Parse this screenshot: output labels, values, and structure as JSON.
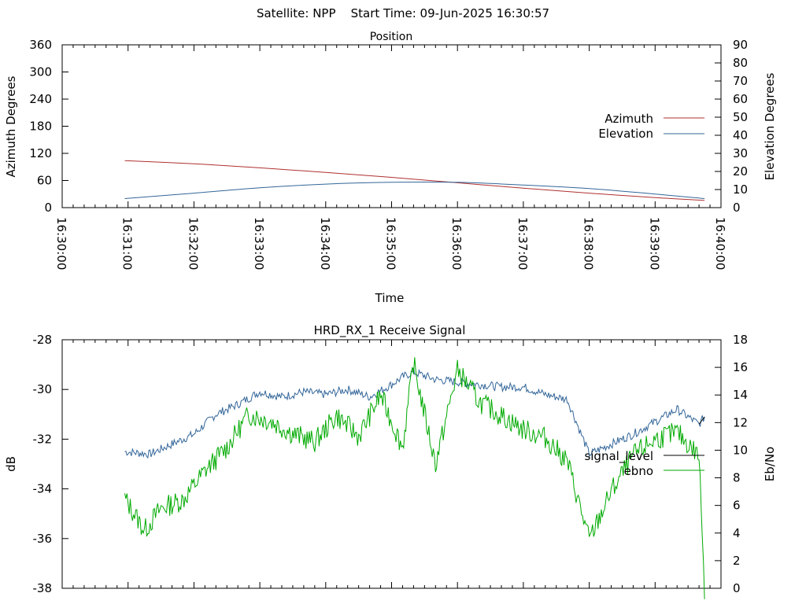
{
  "figure": {
    "header": "Satellite: NPP    Start Time: 09-Jun-2025 16:30:57"
  },
  "chart_data": [
    {
      "type": "line",
      "title": "Position",
      "xlabel": "Time",
      "ylabel_left": "Azimuth Degrees",
      "ylabel_right": "Elevation Degrees",
      "xlim": [
        "16:30:00",
        "16:40:00"
      ],
      "ylim_left": [
        0,
        360
      ],
      "ylim_right": [
        0,
        90
      ],
      "x_ticks": [
        "16:30:00",
        "16:31:00",
        "16:32:00",
        "16:33:00",
        "16:34:00",
        "16:35:00",
        "16:36:00",
        "16:37:00",
        "16:38:00",
        "16:39:00",
        "16:40:00"
      ],
      "y_ticks_left": [
        0,
        60,
        120,
        180,
        240,
        300,
        360
      ],
      "y_ticks_right": [
        0,
        10,
        20,
        30,
        40,
        50,
        60,
        70,
        80,
        90
      ],
      "legend_position": "right",
      "colors": {
        "azimuth": "#b03030",
        "elevation": "#336699"
      },
      "series": [
        {
          "name": "Azimuth",
          "axis": "left",
          "x": [
            "16:30:57",
            "16:32:00",
            "16:33:00",
            "16:34:00",
            "16:35:00",
            "16:36:00",
            "16:37:00",
            "16:38:00",
            "16:39:00",
            "16:39:45"
          ],
          "values": [
            104,
            97,
            88,
            78,
            67,
            55,
            43,
            32,
            22,
            16
          ]
        },
        {
          "name": "Elevation",
          "axis": "right",
          "x": [
            "16:30:57",
            "16:32:00",
            "16:33:00",
            "16:34:00",
            "16:35:00",
            "16:36:00",
            "16:37:00",
            "16:38:00",
            "16:39:00",
            "16:39:45"
          ],
          "values": [
            5,
            8,
            11,
            13,
            14,
            14,
            12.5,
            10.5,
            7.5,
            5
          ]
        }
      ]
    },
    {
      "type": "line",
      "title": "HRD_RX_1 Receive Signal",
      "ylabel_left": "dB",
      "ylabel_right": "Eb/No",
      "xlim": [
        "16:30:00",
        "16:40:00"
      ],
      "ylim_left": [
        -38,
        -28
      ],
      "ylim_right": [
        0,
        18
      ],
      "y_ticks_left": [
        -38,
        -36,
        -34,
        -32,
        -30,
        -28
      ],
      "y_ticks_right": [
        0,
        2,
        4,
        6,
        8,
        10,
        12,
        14,
        16,
        18
      ],
      "legend_position": "right",
      "colors": {
        "signal_level": "#000000",
        "ebno": "#00aa00",
        "envelope": "#336699"
      },
      "series": [
        {
          "name": "signal_level",
          "axis": "left",
          "x": [
            "16:30:57",
            "16:31:20",
            "16:31:40",
            "16:32:00",
            "16:32:20",
            "16:32:40",
            "16:33:00",
            "16:33:20",
            "16:33:40",
            "16:34:00",
            "16:34:20",
            "16:34:40",
            "16:35:00",
            "16:35:10",
            "16:35:20",
            "16:35:40",
            "16:36:00",
            "16:36:20",
            "16:36:40",
            "16:37:00",
            "16:37:20",
            "16:37:40",
            "16:38:00",
            "16:38:20",
            "16:38:40",
            "16:39:00",
            "16:39:20",
            "16:39:40",
            "16:39:45"
          ],
          "values": [
            -32.5,
            -32.6,
            -32.2,
            -31.8,
            -31.0,
            -30.6,
            -30.1,
            -30.3,
            -30.1,
            -30.2,
            -30.0,
            -30.3,
            -29.8,
            -29.5,
            -29.3,
            -29.6,
            -29.7,
            -29.8,
            -29.9,
            -29.9,
            -30.2,
            -30.4,
            -32.6,
            -32.2,
            -31.8,
            -31.3,
            -30.8,
            -31.4,
            -31.1
          ]
        },
        {
          "name": "ebno",
          "axis": "right",
          "x": [
            "16:30:57",
            "16:31:15",
            "16:31:30",
            "16:31:50",
            "16:32:10",
            "16:32:30",
            "16:32:50",
            "16:33:10",
            "16:33:30",
            "16:33:50",
            "16:34:10",
            "16:34:30",
            "16:34:50",
            "16:35:10",
            "16:35:20",
            "16:35:40",
            "16:36:00",
            "16:36:20",
            "16:36:40",
            "16:37:00",
            "16:37:20",
            "16:37:40",
            "16:38:00",
            "16:38:20",
            "16:38:40",
            "16:39:00",
            "16:39:20",
            "16:39:40",
            "16:39:45"
          ],
          "values": [
            6.5,
            4.2,
            5.8,
            6.4,
            8.5,
            10.2,
            12.6,
            12.1,
            11.2,
            10.6,
            12.5,
            11.0,
            14.0,
            10.2,
            16.3,
            9.0,
            15.8,
            13.5,
            12.5,
            11.5,
            10.9,
            9.2,
            3.5,
            7.0,
            9.6,
            10.8,
            11.3,
            9.6,
            0
          ]
        }
      ]
    }
  ]
}
